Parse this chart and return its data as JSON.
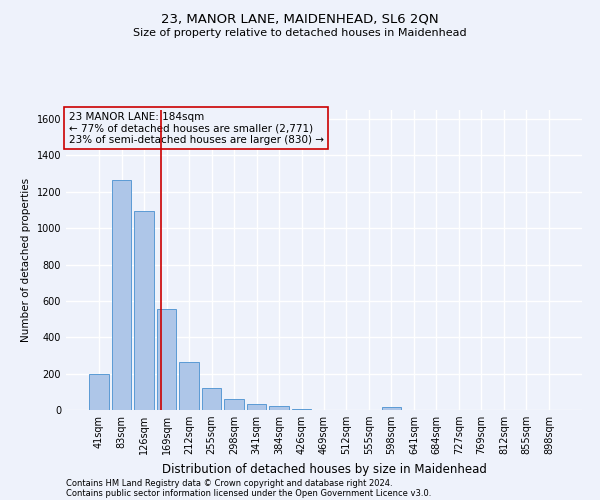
{
  "title1": "23, MANOR LANE, MAIDENHEAD, SL6 2QN",
  "title2": "Size of property relative to detached houses in Maidenhead",
  "xlabel": "Distribution of detached houses by size in Maidenhead",
  "ylabel": "Number of detached properties",
  "footer1": "Contains HM Land Registry data © Crown copyright and database right 2024.",
  "footer2": "Contains public sector information licensed under the Open Government Licence v3.0.",
  "annotation_line1": "23 MANOR LANE: 184sqm",
  "annotation_line2": "← 77% of detached houses are smaller (2,771)",
  "annotation_line3": "23% of semi-detached houses are larger (830) →",
  "bar_color": "#aec6e8",
  "bar_edge_color": "#5b9bd5",
  "ref_line_color": "#cc0000",
  "annotation_box_color": "#cc0000",
  "background_color": "#eef2fb",
  "grid_color": "#ffffff",
  "categories": [
    "41sqm",
    "83sqm",
    "126sqm",
    "169sqm",
    "212sqm",
    "255sqm",
    "298sqm",
    "341sqm",
    "384sqm",
    "426sqm",
    "469sqm",
    "512sqm",
    "555sqm",
    "598sqm",
    "641sqm",
    "684sqm",
    "727sqm",
    "769sqm",
    "812sqm",
    "855sqm",
    "898sqm"
  ],
  "values": [
    197,
    1267,
    1097,
    553,
    265,
    120,
    58,
    33,
    22,
    5,
    0,
    0,
    0,
    15,
    0,
    0,
    0,
    0,
    0,
    0,
    0
  ],
  "ylim": [
    0,
    1650
  ],
  "yticks": [
    0,
    200,
    400,
    600,
    800,
    1000,
    1200,
    1400,
    1600
  ],
  "ref_line_x": 2.77,
  "title1_fontsize": 9.5,
  "title2_fontsize": 8.0,
  "ylabel_fontsize": 7.5,
  "xlabel_fontsize": 8.5,
  "tick_fontsize": 7.0,
  "annot_fontsize": 7.5,
  "footer_fontsize": 6.0
}
